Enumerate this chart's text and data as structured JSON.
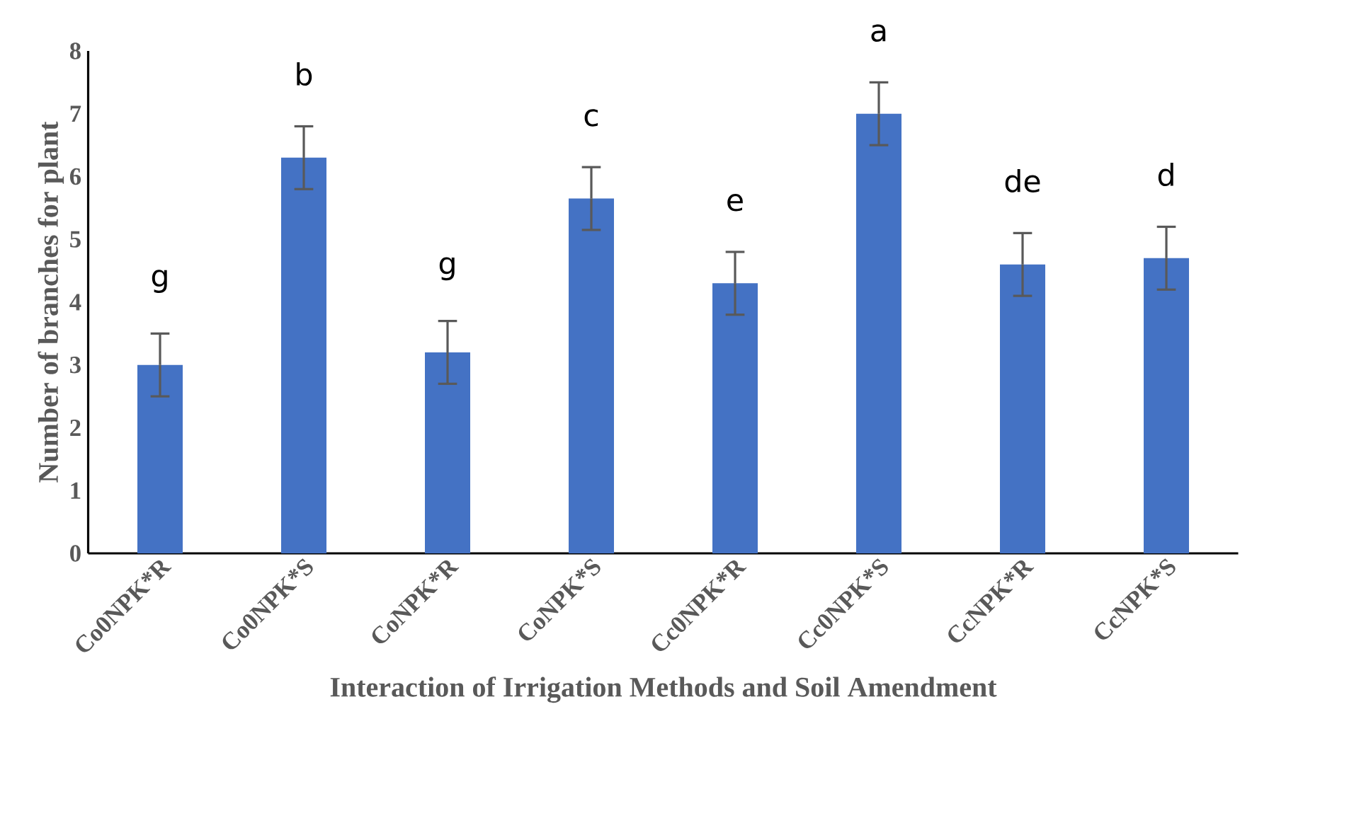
{
  "chart_data": {
    "type": "bar",
    "xlabel": "Interaction of Irrigation Methods and Soil Amendment",
    "ylabel": "Number of branches for plant",
    "categories": [
      "Co0NPK*R",
      "Co0NPK*S",
      "CoNPK*R",
      "CoNPK*S",
      "Cc0NPK*R",
      "Cc0NPK*S",
      "CcNPK*R",
      "CcNPK*S"
    ],
    "values": [
      3.0,
      6.3,
      3.2,
      5.65,
      4.3,
      7.0,
      4.6,
      4.7
    ],
    "errors": [
      0.5,
      0.5,
      0.5,
      0.5,
      0.5,
      0.5,
      0.5,
      0.5
    ],
    "color": "#4472c4",
    "ylim": [
      0,
      8
    ],
    "yticks": [
      0,
      1,
      2,
      3,
      4,
      5,
      6,
      7,
      8
    ],
    "grid": false,
    "annotations": [
      {
        "text": "g",
        "x": "Co0NPK*R",
        "y": 3.5
      },
      {
        "text": "b",
        "x": "Co0NPK*S",
        "y": 6.8
      },
      {
        "text": "g",
        "x": "CoNPK*R",
        "y": 3.7
      },
      {
        "text": "c",
        "x": "CoNPK*S",
        "y": 6.15
      },
      {
        "text": "e",
        "x": "Cc0NPK*R",
        "y": 4.8
      },
      {
        "text": "a",
        "x": "Cc0NPK*S",
        "y": 7.5
      },
      {
        "text": "de",
        "x": "CcNPK*R",
        "y": 5.1
      },
      {
        "text": "d",
        "x": "CcNPK*S",
        "y": 5.2
      }
    ]
  }
}
